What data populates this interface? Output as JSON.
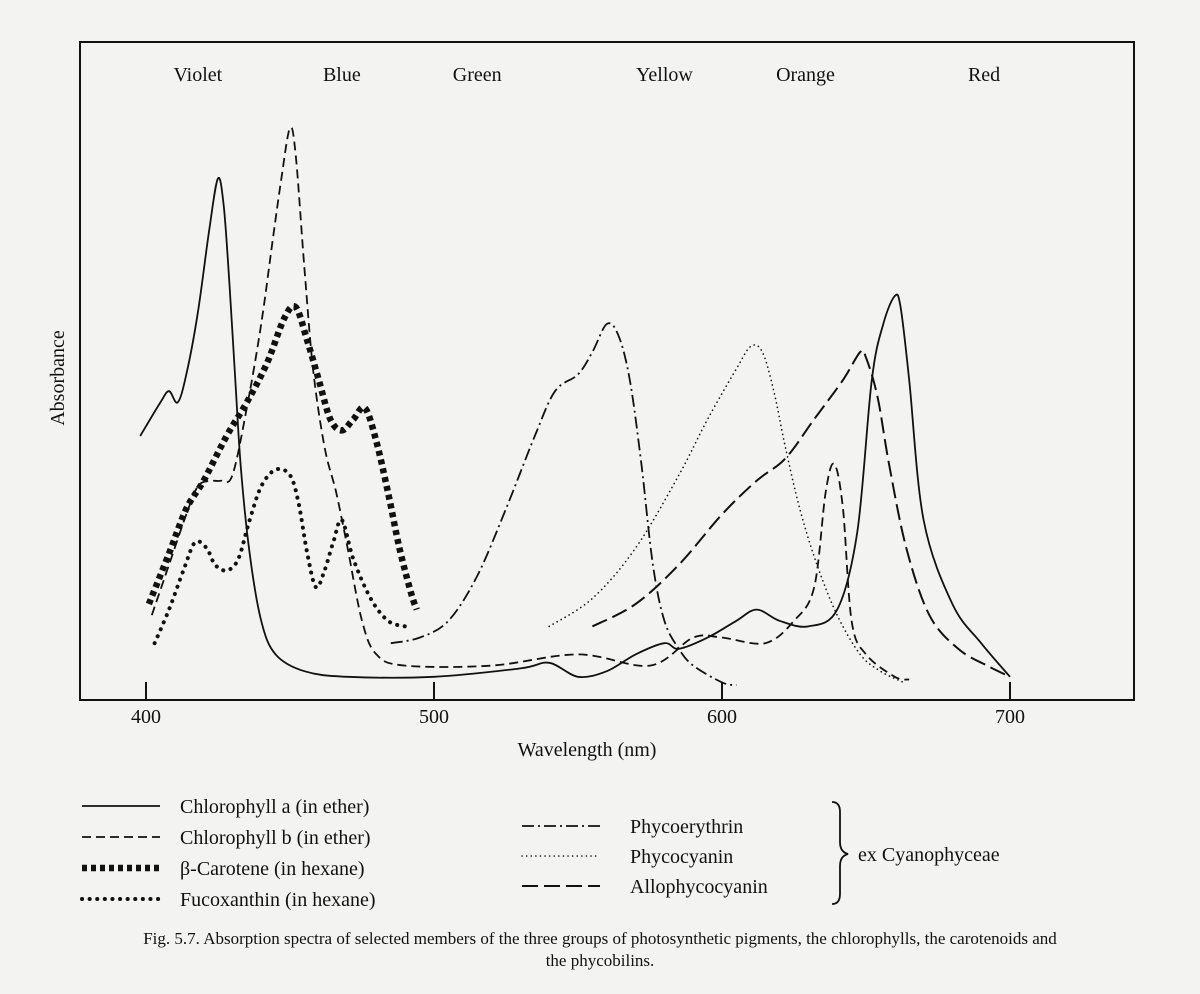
{
  "chart_data": {
    "type": "line",
    "title": "",
    "xlabel": "Wavelength (nm)",
    "ylabel": "Absorbance",
    "xlim": [
      380,
      745
    ],
    "ylim": [
      0,
      100
    ],
    "x_ticks": [
      400,
      500,
      600,
      700
    ],
    "y_ticks": [],
    "grid": false,
    "legend_placement": "below",
    "color_bands": [
      {
        "label": "Violet",
        "x": 418
      },
      {
        "label": "Blue",
        "x": 468
      },
      {
        "label": "Green",
        "x": 515
      },
      {
        "label": "Yellow",
        "x": 580
      },
      {
        "label": "Orange",
        "x": 629
      },
      {
        "label": "Red",
        "x": 691
      }
    ],
    "series": [
      {
        "name": "Chlorophyll a (in ether)",
        "style": "solid",
        "points": [
          [
            398,
            45
          ],
          [
            405,
            51
          ],
          [
            408,
            53
          ],
          [
            411,
            51
          ],
          [
            414,
            56
          ],
          [
            418,
            67
          ],
          [
            422,
            82
          ],
          [
            425,
            91
          ],
          [
            427,
            86
          ],
          [
            429,
            72
          ],
          [
            431,
            55
          ],
          [
            433,
            39
          ],
          [
            436,
            24
          ],
          [
            440,
            12
          ],
          [
            445,
            6
          ],
          [
            455,
            3
          ],
          [
            470,
            2
          ],
          [
            500,
            2
          ],
          [
            530,
            3.5
          ],
          [
            540,
            4.5
          ],
          [
            550,
            2
          ],
          [
            560,
            3
          ],
          [
            570,
            6
          ],
          [
            580,
            8
          ],
          [
            585,
            7
          ],
          [
            595,
            9
          ],
          [
            605,
            12
          ],
          [
            612,
            14
          ],
          [
            620,
            12
          ],
          [
            630,
            11
          ],
          [
            640,
            14
          ],
          [
            647,
            28
          ],
          [
            652,
            55
          ],
          [
            656,
            65
          ],
          [
            660,
            70
          ],
          [
            662,
            68
          ],
          [
            665,
            55
          ],
          [
            670,
            30
          ],
          [
            680,
            15
          ],
          [
            690,
            8
          ],
          [
            700,
            2
          ]
        ]
      },
      {
        "name": "Chlorophyll b (in ether)",
        "style": "dashed",
        "points": [
          [
            402,
            13
          ],
          [
            408,
            22
          ],
          [
            414,
            31
          ],
          [
            418,
            36
          ],
          [
            422,
            37
          ],
          [
            426,
            37
          ],
          [
            430,
            38
          ],
          [
            435,
            50
          ],
          [
            440,
            65
          ],
          [
            444,
            80
          ],
          [
            447,
            91
          ],
          [
            450,
            100
          ],
          [
            452,
            95
          ],
          [
            455,
            75
          ],
          [
            458,
            57
          ],
          [
            462,
            43
          ],
          [
            466,
            35
          ],
          [
            470,
            25
          ],
          [
            475,
            12
          ],
          [
            480,
            6
          ],
          [
            490,
            4
          ],
          [
            520,
            4
          ],
          [
            550,
            6
          ],
          [
            575,
            4
          ],
          [
            590,
            9
          ],
          [
            600,
            9
          ],
          [
            615,
            8
          ],
          [
            625,
            12
          ],
          [
            632,
            18
          ],
          [
            636,
            35
          ],
          [
            639,
            40
          ],
          [
            642,
            32
          ],
          [
            645,
            12
          ],
          [
            650,
            6
          ],
          [
            660,
            2
          ],
          [
            665,
            1.5
          ]
        ]
      },
      {
        "name": "β-Carotene (in hexane)",
        "style": "heavy-dotted",
        "points": [
          [
            401,
            15
          ],
          [
            408,
            24
          ],
          [
            414,
            32
          ],
          [
            420,
            37
          ],
          [
            428,
            45
          ],
          [
            435,
            51
          ],
          [
            442,
            58
          ],
          [
            448,
            66
          ],
          [
            452,
            68
          ],
          [
            456,
            62
          ],
          [
            460,
            55
          ],
          [
            464,
            48
          ],
          [
            468,
            46
          ],
          [
            472,
            48
          ],
          [
            476,
            50
          ],
          [
            480,
            44
          ],
          [
            484,
            35
          ],
          [
            488,
            25
          ],
          [
            492,
            17
          ],
          [
            494,
            14
          ]
        ]
      },
      {
        "name": "Fucoxanthin (in hexane)",
        "style": "dotted",
        "points": [
          [
            403,
            8
          ],
          [
            408,
            14
          ],
          [
            413,
            21
          ],
          [
            417,
            26
          ],
          [
            421,
            25
          ],
          [
            424,
            22
          ],
          [
            428,
            21
          ],
          [
            432,
            23
          ],
          [
            436,
            30
          ],
          [
            440,
            36
          ],
          [
            445,
            39
          ],
          [
            450,
            38
          ],
          [
            453,
            33
          ],
          [
            456,
            24
          ],
          [
            459,
            18
          ],
          [
            462,
            21
          ],
          [
            465,
            26
          ],
          [
            468,
            30
          ],
          [
            472,
            23
          ],
          [
            478,
            16
          ],
          [
            484,
            12
          ],
          [
            490,
            11
          ]
        ]
      },
      {
        "name": "Phycoerythrin",
        "style": "dash-dot",
        "points": [
          [
            485,
            8
          ],
          [
            495,
            9
          ],
          [
            505,
            12
          ],
          [
            515,
            20
          ],
          [
            525,
            32
          ],
          [
            535,
            45
          ],
          [
            542,
            53
          ],
          [
            550,
            56
          ],
          [
            555,
            60
          ],
          [
            560,
            65
          ],
          [
            564,
            63
          ],
          [
            568,
            55
          ],
          [
            572,
            40
          ],
          [
            576,
            22
          ],
          [
            580,
            12
          ],
          [
            585,
            7
          ],
          [
            590,
            4
          ],
          [
            600,
            1
          ],
          [
            605,
            0.5
          ]
        ]
      },
      {
        "name": "Phycocyanin",
        "style": "sparse-dotted",
        "points": [
          [
            540,
            11
          ],
          [
            555,
            16
          ],
          [
            570,
            25
          ],
          [
            585,
            38
          ],
          [
            595,
            48
          ],
          [
            605,
            57
          ],
          [
            610,
            61
          ],
          [
            614,
            60
          ],
          [
            618,
            53
          ],
          [
            622,
            43
          ],
          [
            627,
            32
          ],
          [
            633,
            22
          ],
          [
            640,
            13
          ],
          [
            648,
            6
          ],
          [
            655,
            3
          ],
          [
            663,
            1
          ]
        ]
      },
      {
        "name": "Allophycocyanin",
        "style": "long-dash",
        "points": [
          [
            555,
            11
          ],
          [
            570,
            15
          ],
          [
            585,
            22
          ],
          [
            600,
            31
          ],
          [
            612,
            37
          ],
          [
            622,
            41
          ],
          [
            632,
            48
          ],
          [
            642,
            55
          ],
          [
            648,
            60
          ],
          [
            650,
            59
          ],
          [
            654,
            52
          ],
          [
            658,
            40
          ],
          [
            664,
            25
          ],
          [
            672,
            13
          ],
          [
            682,
            7
          ],
          [
            692,
            4
          ],
          [
            700,
            2
          ]
        ]
      }
    ]
  },
  "legend": {
    "left": [
      {
        "label": "Chlorophyll a (in ether)",
        "style": "solid"
      },
      {
        "label": "Chlorophyll b (in ether)",
        "style": "dashed"
      },
      {
        "label": "β-Carotene (in hexane)",
        "style": "heavy-dotted"
      },
      {
        "label": "Fucoxanthin (in hexane)",
        "style": "dotted"
      }
    ],
    "right": [
      {
        "label": "Phycoerythrin",
        "style": "dash-dot"
      },
      {
        "label": "Phycocyanin",
        "style": "sparse-dotted"
      },
      {
        "label": "Allophycocyanin",
        "style": "long-dash"
      }
    ],
    "group_label": "ex Cyanophyceae"
  },
  "caption": {
    "line1": "Fig. 5.7. Absorption spectra of selected members of the three groups of photosynthetic pigments, the chlorophylls, the carotenoids and",
    "line2": "the phycobilins."
  }
}
